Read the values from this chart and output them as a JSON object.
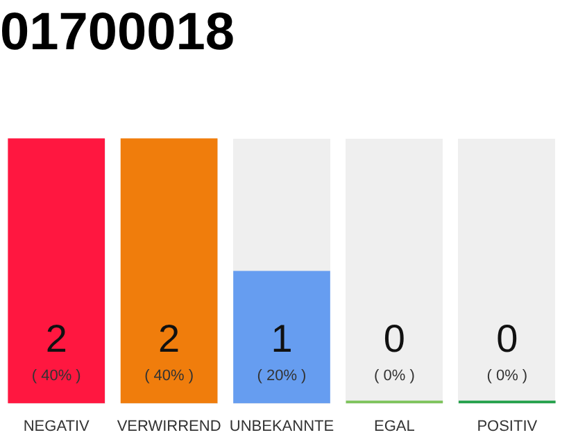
{
  "chart_data": {
    "type": "bar",
    "title": "01700018",
    "categories": [
      "NEGATIV",
      "VERWIRREND",
      "UNBEKANNTE",
      "EGAL",
      "POSITIV"
    ],
    "values": [
      2,
      2,
      1,
      0,
      0
    ],
    "colors": [
      "#ff1740",
      "#f07d0c",
      "#669df0",
      "#7cc35a",
      "#23a04a"
    ],
    "value_labels": [
      "2 ( 40% )",
      "2 ( 40% )",
      "1 ( 20% )",
      "0 ( 0% )",
      "0 ( 0% )"
    ],
    "grid": false,
    "legend": false,
    "tick_labels": "x"
  }
}
